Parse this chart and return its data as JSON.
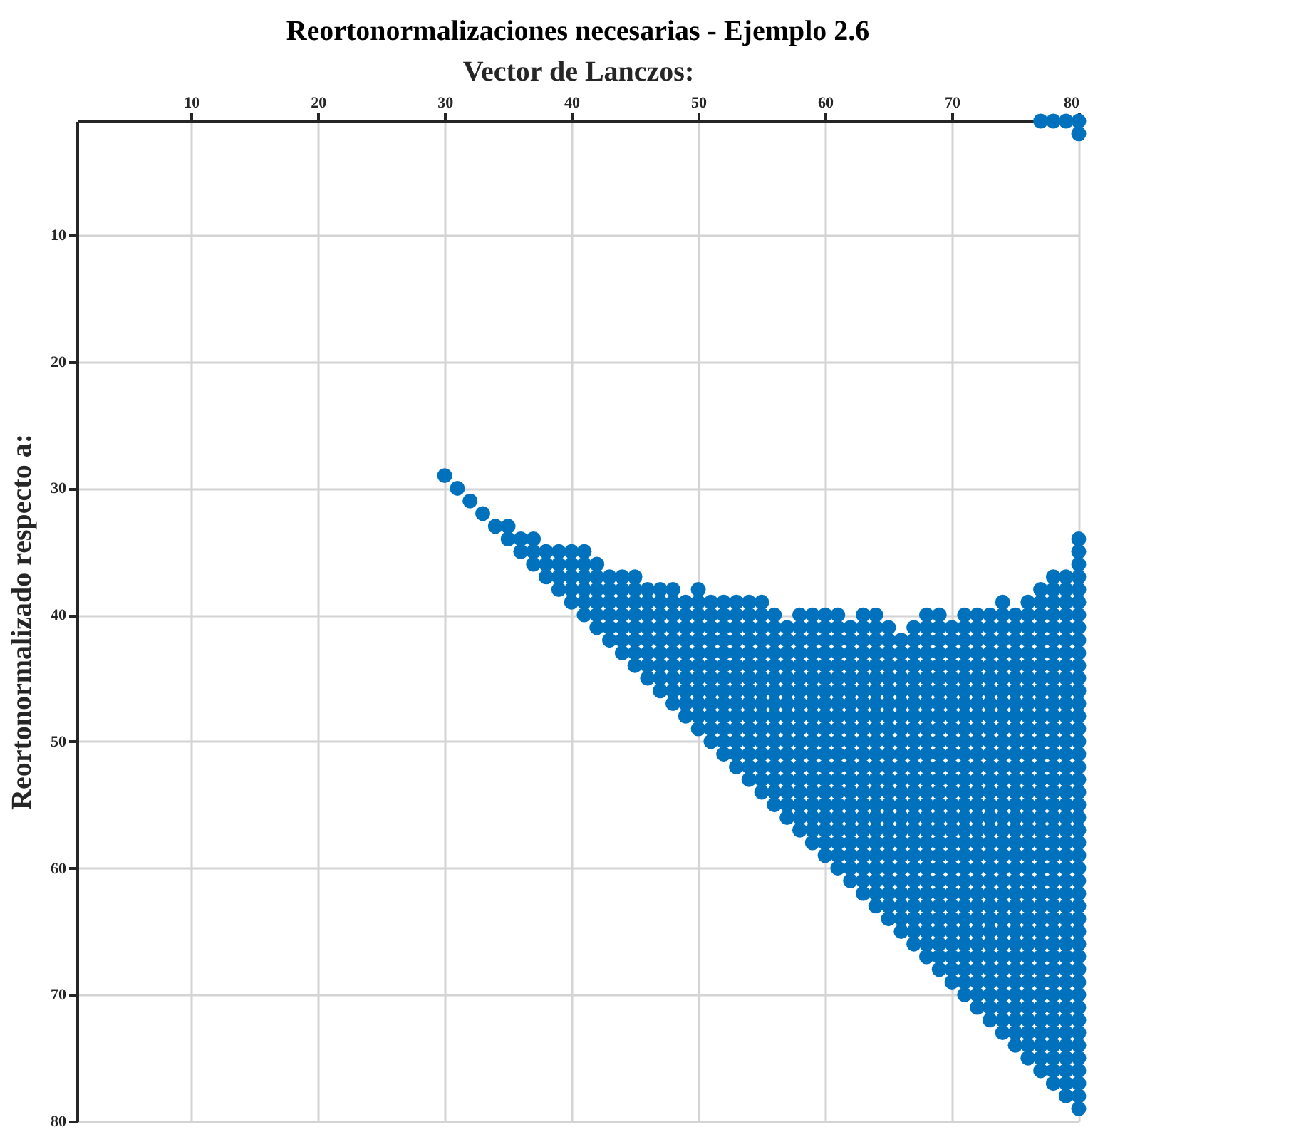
{
  "chart_data": {
    "type": "scatter",
    "title": "Reortonormalizaciones necesarias - Ejemplo 2.6",
    "xlabel": "Vector de Lanczos:",
    "ylabel": "Reortonormalizado respecto a:",
    "xlim": [
      1,
      80
    ],
    "ylim": [
      80,
      1
    ],
    "xticks": [
      10,
      20,
      30,
      40,
      50,
      60,
      70,
      80
    ],
    "yticks": [
      10,
      20,
      30,
      40,
      50,
      60,
      70,
      80
    ],
    "grid": true,
    "marker": "circle",
    "series": [
      {
        "color": "#0072bd",
        "x": [
          30
        ],
        "values": [
          29
        ]
      },
      {
        "color": "#0072bd",
        "x": [
          31
        ],
        "values": [
          30
        ]
      },
      {
        "color": "#0072bd",
        "x": [
          32
        ],
        "values": [
          31
        ]
      },
      {
        "color": "#0072bd",
        "x": [
          33
        ],
        "values": [
          32
        ]
      },
      {
        "color": "#0072bd",
        "x": [
          34
        ],
        "values": [
          33
        ]
      },
      {
        "color": "#0072bd",
        "x": [
          35,
          35
        ],
        "values": [
          33,
          34
        ]
      },
      {
        "color": "#0072bd",
        "x": [
          36,
          36
        ],
        "values": [
          34,
          35
        ]
      },
      {
        "color": "#0072bd",
        "x": [
          37,
          37,
          37
        ],
        "values": [
          34,
          35,
          36
        ]
      },
      {
        "color": "#0072bd",
        "x": [
          38,
          38,
          38
        ],
        "values": [
          35,
          36,
          37
        ]
      },
      {
        "color": "#0072bd",
        "x": [
          39,
          39,
          39,
          39
        ],
        "values": [
          35,
          36,
          37,
          38
        ]
      },
      {
        "color": "#0072bd",
        "x": [
          40,
          40,
          40,
          40,
          40
        ],
        "values": [
          35,
          36,
          37,
          38,
          39
        ]
      },
      {
        "color": "#0072bd",
        "x": [
          41,
          41,
          41,
          41,
          41,
          41
        ],
        "values": [
          35,
          36,
          37,
          38,
          39,
          40
        ]
      },
      {
        "color": "#0072bd",
        "x": [
          42,
          42,
          42,
          42,
          42,
          42
        ],
        "values": [
          36,
          37,
          38,
          39,
          40,
          41
        ]
      },
      {
        "color": "#0072bd",
        "x": [
          43,
          43,
          43,
          43,
          43,
          43
        ],
        "values": [
          37,
          38,
          39,
          40,
          41,
          42
        ]
      },
      {
        "color": "#0072bd",
        "x": [
          44,
          44,
          44,
          44,
          44,
          44,
          44
        ],
        "values": [
          37,
          38,
          39,
          40,
          41,
          42,
          43
        ]
      },
      {
        "color": "#0072bd",
        "x": [
          45,
          45,
          45,
          45,
          45,
          45,
          45,
          45
        ],
        "values": [
          37,
          38,
          39,
          40,
          41,
          42,
          43,
          44
        ]
      },
      {
        "color": "#0072bd",
        "x": [
          46,
          46,
          46,
          46,
          46,
          46,
          46,
          46
        ],
        "values": [
          38,
          39,
          40,
          41,
          42,
          43,
          44,
          45
        ]
      },
      {
        "color": "#0072bd",
        "x": [
          47,
          47,
          47,
          47,
          47,
          47,
          47,
          47,
          47
        ],
        "values": [
          38,
          39,
          40,
          41,
          42,
          43,
          44,
          45,
          46
        ]
      },
      {
        "color": "#0072bd",
        "x": [
          48,
          48,
          48,
          48,
          48,
          48,
          48,
          48,
          48,
          48
        ],
        "values": [
          38,
          39,
          40,
          41,
          42,
          43,
          44,
          45,
          46,
          47
        ]
      },
      {
        "color": "#0072bd",
        "x": [
          49,
          49,
          49,
          49,
          49,
          49,
          49,
          49,
          49,
          49
        ],
        "values": [
          39,
          40,
          41,
          42,
          43,
          44,
          45,
          46,
          47,
          48
        ]
      },
      {
        "color": "#0072bd",
        "x": [
          50,
          50,
          50,
          50,
          50,
          50,
          50,
          50,
          50,
          50,
          50,
          50
        ],
        "values": [
          38,
          39,
          40,
          41,
          42,
          43,
          44,
          45,
          46,
          47,
          48,
          49
        ]
      },
      {
        "color": "#0072bd",
        "x": [
          51,
          51,
          51,
          51,
          51,
          51,
          51,
          51,
          51,
          51,
          51,
          51
        ],
        "values": [
          39,
          40,
          41,
          42,
          43,
          44,
          45,
          46,
          47,
          48,
          49,
          50
        ]
      },
      {
        "color": "#0072bd",
        "x": [
          52,
          52,
          52,
          52,
          52,
          52,
          52,
          52,
          52,
          52,
          52,
          52,
          52
        ],
        "values": [
          39,
          40,
          41,
          42,
          43,
          44,
          45,
          46,
          47,
          48,
          49,
          50,
          51
        ]
      },
      {
        "color": "#0072bd",
        "x": [
          53,
          53,
          53,
          53,
          53,
          53,
          53,
          53,
          53,
          53,
          53,
          53,
          53,
          53
        ],
        "values": [
          39,
          40,
          41,
          42,
          43,
          44,
          45,
          46,
          47,
          48,
          49,
          50,
          51,
          52
        ]
      },
      {
        "color": "#0072bd",
        "x": [
          54,
          54,
          54,
          54,
          54,
          54,
          54,
          54,
          54,
          54,
          54,
          54,
          54,
          54,
          54
        ],
        "values": [
          39,
          40,
          41,
          42,
          43,
          44,
          45,
          46,
          47,
          48,
          49,
          50,
          51,
          52,
          53
        ]
      },
      {
        "color": "#0072bd",
        "x": [
          55,
          55,
          55,
          55,
          55,
          55,
          55,
          55,
          55,
          55,
          55,
          55,
          55,
          55,
          55,
          55
        ],
        "values": [
          39,
          40,
          41,
          42,
          43,
          44,
          45,
          46,
          47,
          48,
          49,
          50,
          51,
          52,
          53,
          54
        ]
      },
      {
        "color": "#0072bd",
        "x": [
          56,
          56,
          56,
          56,
          56,
          56,
          56,
          56,
          56,
          56,
          56,
          56,
          56,
          56,
          56,
          56
        ],
        "values": [
          40,
          41,
          42,
          43,
          44,
          45,
          46,
          47,
          48,
          49,
          50,
          51,
          52,
          53,
          54,
          55
        ]
      },
      {
        "color": "#0072bd",
        "x": [
          57,
          57,
          57,
          57,
          57,
          57,
          57,
          57,
          57,
          57,
          57,
          57,
          57,
          57,
          57,
          57
        ],
        "values": [
          41,
          42,
          43,
          44,
          45,
          46,
          47,
          48,
          49,
          50,
          51,
          52,
          53,
          54,
          55,
          56
        ]
      },
      {
        "color": "#0072bd",
        "x": [
          58,
          58,
          58,
          58,
          58,
          58,
          58,
          58,
          58,
          58,
          58,
          58,
          58,
          58,
          58,
          58,
          58,
          58
        ],
        "values": [
          40,
          41,
          42,
          43,
          44,
          45,
          46,
          47,
          48,
          49,
          50,
          51,
          52,
          53,
          54,
          55,
          56,
          57
        ]
      },
      {
        "color": "#0072bd",
        "x": [
          59,
          59,
          59,
          59,
          59,
          59,
          59,
          59,
          59,
          59,
          59,
          59,
          59,
          59,
          59,
          59,
          59,
          59,
          59
        ],
        "values": [
          40,
          41,
          42,
          43,
          44,
          45,
          46,
          47,
          48,
          49,
          50,
          51,
          52,
          53,
          54,
          55,
          56,
          57,
          58
        ]
      },
      {
        "color": "#0072bd",
        "x": [
          60,
          60,
          60,
          60,
          60,
          60,
          60,
          60,
          60,
          60,
          60,
          60,
          60,
          60,
          60,
          60,
          60,
          60,
          60,
          60
        ],
        "values": [
          40,
          41,
          42,
          43,
          44,
          45,
          46,
          47,
          48,
          49,
          50,
          51,
          52,
          53,
          54,
          55,
          56,
          57,
          58,
          59
        ]
      },
      {
        "color": "#0072bd",
        "x": [
          61,
          61,
          61,
          61,
          61,
          61,
          61,
          61,
          61,
          61,
          61,
          61,
          61,
          61,
          61,
          61,
          61,
          61,
          61,
          61,
          61
        ],
        "values": [
          40,
          41,
          42,
          43,
          44,
          45,
          46,
          47,
          48,
          49,
          50,
          51,
          52,
          53,
          54,
          55,
          56,
          57,
          58,
          59,
          60
        ]
      },
      {
        "color": "#0072bd",
        "x": [
          62,
          62,
          62,
          62,
          62,
          62,
          62,
          62,
          62,
          62,
          62,
          62,
          62,
          62,
          62,
          62,
          62,
          62,
          62,
          62,
          62
        ],
        "values": [
          41,
          42,
          43,
          44,
          45,
          46,
          47,
          48,
          49,
          50,
          51,
          52,
          53,
          54,
          55,
          56,
          57,
          58,
          59,
          60,
          61
        ]
      },
      {
        "color": "#0072bd",
        "x": [
          63,
          63,
          63,
          63,
          63,
          63,
          63,
          63,
          63,
          63,
          63,
          63,
          63,
          63,
          63,
          63,
          63,
          63,
          63,
          63,
          63,
          63,
          63
        ],
        "values": [
          40,
          41,
          42,
          43,
          44,
          45,
          46,
          47,
          48,
          49,
          50,
          51,
          52,
          53,
          54,
          55,
          56,
          57,
          58,
          59,
          60,
          61,
          62
        ]
      },
      {
        "color": "#0072bd",
        "x": [
          64,
          64,
          64,
          64,
          64,
          64,
          64,
          64,
          64,
          64,
          64,
          64,
          64,
          64,
          64,
          64,
          64,
          64,
          64,
          64,
          64,
          64,
          64,
          64
        ],
        "values": [
          40,
          41,
          42,
          43,
          44,
          45,
          46,
          47,
          48,
          49,
          50,
          51,
          52,
          53,
          54,
          55,
          56,
          57,
          58,
          59,
          60,
          61,
          62,
          63
        ]
      },
      {
        "color": "#0072bd",
        "x": [
          65,
          65,
          65,
          65,
          65,
          65,
          65,
          65,
          65,
          65,
          65,
          65,
          65,
          65,
          65,
          65,
          65,
          65,
          65,
          65,
          65,
          65,
          65,
          65
        ],
        "values": [
          41,
          42,
          43,
          44,
          45,
          46,
          47,
          48,
          49,
          50,
          51,
          52,
          53,
          54,
          55,
          56,
          57,
          58,
          59,
          60,
          61,
          62,
          63,
          64
        ]
      },
      {
        "color": "#0072bd",
        "x": [
          66,
          66,
          66,
          66,
          66,
          66,
          66,
          66,
          66,
          66,
          66,
          66,
          66,
          66,
          66,
          66,
          66,
          66,
          66,
          66,
          66,
          66,
          66,
          66
        ],
        "values": [
          42,
          43,
          44,
          45,
          46,
          47,
          48,
          49,
          50,
          51,
          52,
          53,
          54,
          55,
          56,
          57,
          58,
          59,
          60,
          61,
          62,
          63,
          64,
          65
        ]
      },
      {
        "color": "#0072bd",
        "x": [
          67,
          67,
          67,
          67,
          67,
          67,
          67,
          67,
          67,
          67,
          67,
          67,
          67,
          67,
          67,
          67,
          67,
          67,
          67,
          67,
          67,
          67,
          67,
          67,
          67,
          67
        ],
        "values": [
          41,
          42,
          43,
          44,
          45,
          46,
          47,
          48,
          49,
          50,
          51,
          52,
          53,
          54,
          55,
          56,
          57,
          58,
          59,
          60,
          61,
          62,
          63,
          64,
          65,
          66
        ]
      },
      {
        "color": "#0072bd",
        "x": [
          68,
          68,
          68,
          68,
          68,
          68,
          68,
          68,
          68,
          68,
          68,
          68,
          68,
          68,
          68,
          68,
          68,
          68,
          68,
          68,
          68,
          68,
          68,
          68,
          68,
          68,
          68,
          68
        ],
        "values": [
          40,
          41,
          42,
          43,
          44,
          45,
          46,
          47,
          48,
          49,
          50,
          51,
          52,
          53,
          54,
          55,
          56,
          57,
          58,
          59,
          60,
          61,
          62,
          63,
          64,
          65,
          66,
          67
        ]
      },
      {
        "color": "#0072bd",
        "x": [
          69,
          69,
          69,
          69,
          69,
          69,
          69,
          69,
          69,
          69,
          69,
          69,
          69,
          69,
          69,
          69,
          69,
          69,
          69,
          69,
          69,
          69,
          69,
          69,
          69,
          69,
          69,
          69,
          69
        ],
        "values": [
          40,
          41,
          42,
          43,
          44,
          45,
          46,
          47,
          48,
          49,
          50,
          51,
          52,
          53,
          54,
          55,
          56,
          57,
          58,
          59,
          60,
          61,
          62,
          63,
          64,
          65,
          66,
          67,
          68
        ]
      },
      {
        "color": "#0072bd",
        "x": [
          70,
          70,
          70,
          70,
          70,
          70,
          70,
          70,
          70,
          70,
          70,
          70,
          70,
          70,
          70,
          70,
          70,
          70,
          70,
          70,
          70,
          70,
          70,
          70,
          70,
          70,
          70,
          70,
          70
        ],
        "values": [
          41,
          42,
          43,
          44,
          45,
          46,
          47,
          48,
          49,
          50,
          51,
          52,
          53,
          54,
          55,
          56,
          57,
          58,
          59,
          60,
          61,
          62,
          63,
          64,
          65,
          66,
          67,
          68,
          69
        ]
      },
      {
        "color": "#0072bd",
        "x": [
          71,
          71,
          71,
          71,
          71,
          71,
          71,
          71,
          71,
          71,
          71,
          71,
          71,
          71,
          71,
          71,
          71,
          71,
          71,
          71,
          71,
          71,
          71,
          71,
          71,
          71,
          71,
          71,
          71,
          71,
          71
        ],
        "values": [
          40,
          41,
          42,
          43,
          44,
          45,
          46,
          47,
          48,
          49,
          50,
          51,
          52,
          53,
          54,
          55,
          56,
          57,
          58,
          59,
          60,
          61,
          62,
          63,
          64,
          65,
          66,
          67,
          68,
          69,
          70
        ]
      },
      {
        "color": "#0072bd",
        "x": [
          72,
          72,
          72,
          72,
          72,
          72,
          72,
          72,
          72,
          72,
          72,
          72,
          72,
          72,
          72,
          72,
          72,
          72,
          72,
          72,
          72,
          72,
          72,
          72,
          72,
          72,
          72,
          72,
          72,
          72,
          72,
          72
        ],
        "values": [
          40,
          41,
          42,
          43,
          44,
          45,
          46,
          47,
          48,
          49,
          50,
          51,
          52,
          53,
          54,
          55,
          56,
          57,
          58,
          59,
          60,
          61,
          62,
          63,
          64,
          65,
          66,
          67,
          68,
          69,
          70,
          71
        ]
      },
      {
        "color": "#0072bd",
        "x": [
          73,
          73,
          73,
          73,
          73,
          73,
          73,
          73,
          73,
          73,
          73,
          73,
          73,
          73,
          73,
          73,
          73,
          73,
          73,
          73,
          73,
          73,
          73,
          73,
          73,
          73,
          73,
          73,
          73,
          73,
          73,
          73,
          73
        ],
        "values": [
          40,
          41,
          42,
          43,
          44,
          45,
          46,
          47,
          48,
          49,
          50,
          51,
          52,
          53,
          54,
          55,
          56,
          57,
          58,
          59,
          60,
          61,
          62,
          63,
          64,
          65,
          66,
          67,
          68,
          69,
          70,
          71,
          72
        ]
      },
      {
        "color": "#0072bd",
        "x": [
          74,
          74,
          74,
          74,
          74,
          74,
          74,
          74,
          74,
          74,
          74,
          74,
          74,
          74,
          74,
          74,
          74,
          74,
          74,
          74,
          74,
          74,
          74,
          74,
          74,
          74,
          74,
          74,
          74,
          74,
          74,
          74,
          74,
          74,
          74
        ],
        "values": [
          39,
          40,
          41,
          42,
          43,
          44,
          45,
          46,
          47,
          48,
          49,
          50,
          51,
          52,
          53,
          54,
          55,
          56,
          57,
          58,
          59,
          60,
          61,
          62,
          63,
          64,
          65,
          66,
          67,
          68,
          69,
          70,
          71,
          72,
          73
        ]
      },
      {
        "color": "#0072bd",
        "x": [
          75,
          75,
          75,
          75,
          75,
          75,
          75,
          75,
          75,
          75,
          75,
          75,
          75,
          75,
          75,
          75,
          75,
          75,
          75,
          75,
          75,
          75,
          75,
          75,
          75,
          75,
          75,
          75,
          75,
          75,
          75,
          75,
          75,
          75,
          75
        ],
        "values": [
          40,
          41,
          42,
          43,
          44,
          45,
          46,
          47,
          48,
          49,
          50,
          51,
          52,
          53,
          54,
          55,
          56,
          57,
          58,
          59,
          60,
          61,
          62,
          63,
          64,
          65,
          66,
          67,
          68,
          69,
          70,
          71,
          72,
          73,
          74
        ]
      },
      {
        "color": "#0072bd",
        "x": [
          76,
          76,
          76,
          76,
          76,
          76,
          76,
          76,
          76,
          76,
          76,
          76,
          76,
          76,
          76,
          76,
          76,
          76,
          76,
          76,
          76,
          76,
          76,
          76,
          76,
          76,
          76,
          76,
          76,
          76,
          76,
          76,
          76,
          76,
          76,
          76,
          76
        ],
        "values": [
          39,
          40,
          41,
          42,
          43,
          44,
          45,
          46,
          47,
          48,
          49,
          50,
          51,
          52,
          53,
          54,
          55,
          56,
          57,
          58,
          59,
          60,
          61,
          62,
          63,
          64,
          65,
          66,
          67,
          68,
          69,
          70,
          71,
          72,
          73,
          74,
          75
        ]
      },
      {
        "color": "#0072bd",
        "x": [
          77,
          77,
          77,
          77,
          77,
          77,
          77,
          77,
          77,
          77,
          77,
          77,
          77,
          77,
          77,
          77,
          77,
          77,
          77,
          77,
          77,
          77,
          77,
          77,
          77,
          77,
          77,
          77,
          77,
          77,
          77,
          77,
          77,
          77,
          77,
          77,
          77,
          77,
          77,
          77
        ],
        "values": [
          1,
          38,
          39,
          40,
          41,
          42,
          43,
          44,
          45,
          46,
          47,
          48,
          49,
          50,
          51,
          52,
          53,
          54,
          55,
          56,
          57,
          58,
          59,
          60,
          61,
          62,
          63,
          64,
          65,
          66,
          67,
          68,
          69,
          70,
          71,
          72,
          73,
          74,
          75,
          76
        ]
      },
      {
        "color": "#0072bd",
        "x": [
          78,
          78,
          78,
          78,
          78,
          78,
          78,
          78,
          78,
          78,
          78,
          78,
          78,
          78,
          78,
          78,
          78,
          78,
          78,
          78,
          78,
          78,
          78,
          78,
          78,
          78,
          78,
          78,
          78,
          78,
          78,
          78,
          78,
          78,
          78,
          78,
          78,
          78,
          78,
          78,
          78,
          78
        ],
        "values": [
          1,
          37,
          38,
          39,
          40,
          41,
          42,
          43,
          44,
          45,
          46,
          47,
          48,
          49,
          50,
          51,
          52,
          53,
          54,
          55,
          56,
          57,
          58,
          59,
          60,
          61,
          62,
          63,
          64,
          65,
          66,
          67,
          68,
          69,
          70,
          71,
          72,
          73,
          74,
          75,
          76,
          77
        ]
      },
      {
        "color": "#0072bd",
        "x": [
          79,
          79,
          79,
          79,
          79,
          79,
          79,
          79,
          79,
          79,
          79,
          79,
          79,
          79,
          79,
          79,
          79,
          79,
          79,
          79,
          79,
          79,
          79,
          79,
          79,
          79,
          79,
          79,
          79,
          79,
          79,
          79,
          79,
          79,
          79,
          79,
          79,
          79,
          79,
          79,
          79,
          79,
          79
        ],
        "values": [
          1,
          37,
          38,
          39,
          40,
          41,
          42,
          43,
          44,
          45,
          46,
          47,
          48,
          49,
          50,
          51,
          52,
          53,
          54,
          55,
          56,
          57,
          58,
          59,
          60,
          61,
          62,
          63,
          64,
          65,
          66,
          67,
          68,
          69,
          70,
          71,
          72,
          73,
          74,
          75,
          76,
          77,
          78
        ]
      },
      {
        "color": "#0072bd",
        "x": [
          80,
          80,
          80,
          80,
          80,
          80,
          80,
          80,
          80,
          80,
          80,
          80,
          80,
          80,
          80,
          80,
          80,
          80,
          80,
          80,
          80,
          80,
          80,
          80,
          80,
          80,
          80,
          80,
          80,
          80,
          80,
          80,
          80,
          80,
          80,
          80,
          80,
          80,
          80,
          80,
          80,
          80,
          80,
          80,
          80,
          80,
          80,
          80
        ],
        "values": [
          1,
          2,
          34,
          35,
          36,
          37,
          38,
          39,
          40,
          41,
          42,
          43,
          44,
          45,
          46,
          47,
          48,
          49,
          50,
          51,
          52,
          53,
          54,
          55,
          56,
          57,
          58,
          59,
          60,
          61,
          62,
          63,
          64,
          65,
          66,
          67,
          68,
          69,
          70,
          71,
          72,
          73,
          74,
          75,
          76,
          77,
          78,
          79
        ]
      }
    ]
  }
}
